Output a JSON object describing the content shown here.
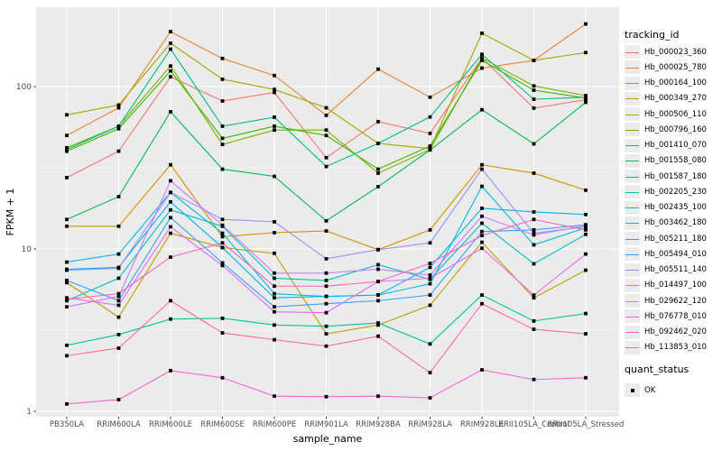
{
  "chart_data": {
    "type": "line",
    "title": "",
    "xlabel": "sample_name",
    "ylabel": "FPKM + 1",
    "y_scale": "log10",
    "ylim": [
      1,
      316
    ],
    "y_ticks": [
      1,
      10,
      100
    ],
    "y_minor_ticks": [
      3.162,
      31.62,
      316.2
    ],
    "grid": "on",
    "legend_position": "right",
    "panel_background": "#ebebeb",
    "gridline_color": "#ffffff",
    "tick_label_color": "#4d4d4d",
    "point_marker": "black-square",
    "categories": [
      "PB350LA",
      "RRIM600LA",
      "RRIM600LE",
      "RRIM600SE",
      "RRIM600PE",
      "RRIM901LA",
      "RRIM928BA",
      "RRIM928LA",
      "RRIM928LE",
      "RRII105LA_Control",
      "RRII105LA_Stressed"
    ],
    "legend_title": "tracking_id",
    "quant_legend_title": "quant_status",
    "quant_legend_value": "OK",
    "series": [
      {
        "name": "Hb_000023_360",
        "color": "#F8766D",
        "values": [
          27.5,
          40,
          115,
          81.5,
          92,
          36.5,
          60.8,
          51.5,
          150,
          73.7,
          83
        ]
      },
      {
        "name": "Hb_000025_780",
        "color": "#EA8331",
        "values": [
          50,
          74,
          218,
          149,
          117,
          66.5,
          128,
          86,
          130,
          145,
          243
        ]
      },
      {
        "name": "Hb_000164_100",
        "color": "#D89000",
        "values": [
          13.8,
          13.8,
          33,
          11.9,
          12.6,
          12.9,
          9.9,
          13.1,
          33,
          29.3,
          23
        ]
      },
      {
        "name": "Hb_000349_270",
        "color": "#C09B00",
        "values": [
          6.2,
          3.8,
          12.5,
          10.2,
          9.4,
          3.0,
          3.4,
          4.5,
          11.0,
          5.0,
          7.4
        ]
      },
      {
        "name": "Hb_000506_110",
        "color": "#A3A500",
        "values": [
          67,
          77,
          185,
          111,
          96,
          74,
          44.7,
          41.5,
          213,
          145,
          162
        ]
      },
      {
        "name": "Hb_000796_160",
        "color": "#7CAE00",
        "values": [
          42,
          57,
          134,
          44,
          54,
          54,
          29.3,
          41,
          150,
          101,
          88
        ]
      },
      {
        "name": "Hb_001410_070",
        "color": "#39B600",
        "values": [
          40,
          55,
          125,
          48,
          57,
          50,
          31,
          43,
          145,
          95,
          85
        ]
      },
      {
        "name": "Hb_001558_080",
        "color": "#00BB4E",
        "values": [
          15.2,
          21,
          70,
          31,
          28,
          14.9,
          24.2,
          40.7,
          72,
          44.4,
          80
        ]
      },
      {
        "name": "Hb_001587_180",
        "color": "#00BF7D",
        "values": [
          41,
          57,
          170,
          57,
          64.8,
          32.2,
          44.7,
          65,
          158,
          83.6,
          86
        ]
      },
      {
        "name": "Hb_002205_230",
        "color": "#00C1A3",
        "values": [
          2.55,
          2.97,
          3.7,
          3.74,
          3.4,
          3.34,
          3.5,
          2.6,
          5.2,
          3.6,
          4.0
        ]
      },
      {
        "name": "Hb_002435_100",
        "color": "#00BFC4",
        "values": [
          4.8,
          6.6,
          17.4,
          13.8,
          6.6,
          6.4,
          8.0,
          6.5,
          14.4,
          8.1,
          12.3
        ]
      },
      {
        "name": "Hb_003462_180",
        "color": "#00BAE0",
        "values": [
          8.3,
          9.3,
          22.3,
          12.5,
          5.3,
          5.1,
          5.2,
          6.1,
          24.3,
          10.6,
          13.5
        ]
      },
      {
        "name": "Hb_005211_180",
        "color": "#00B0F6",
        "values": [
          7.5,
          7.7,
          19.5,
          10.2,
          5.0,
          5.1,
          5.2,
          7.7,
          17.8,
          16.9,
          16.3
        ]
      },
      {
        "name": "Hb_005494_010",
        "color": "#35A2FF",
        "values": [
          6.4,
          4.8,
          15.6,
          8.2,
          4.4,
          4.6,
          4.8,
          5.2,
          12.8,
          13.1,
          14.1
        ]
      },
      {
        "name": "Hb_005511_140",
        "color": "#9590FF",
        "values": [
          7.4,
          7.6,
          22.3,
          15.2,
          14.7,
          8.7,
          9.9,
          10.9,
          31,
          12.5,
          13.7
        ]
      },
      {
        "name": "Hb_014497_100",
        "color": "#C77CFF",
        "values": [
          4.4,
          5.1,
          26.3,
          14.0,
          7.1,
          7.1,
          7.5,
          6.9,
          15.9,
          12.2,
          13.9
        ]
      },
      {
        "name": "Hb_029622_120",
        "color": "#E76BF3",
        "values": [
          5.0,
          4.5,
          13.7,
          7.9,
          4.1,
          4.05,
          6.3,
          6.6,
          10.1,
          5.2,
          9.3
        ]
      },
      {
        "name": "Hb_076778_010",
        "color": "#FA62DB",
        "values": [
          1.11,
          1.18,
          1.78,
          1.61,
          1.24,
          1.23,
          1.24,
          1.21,
          1.8,
          1.57,
          1.61
        ]
      },
      {
        "name": "Hb_092462_020",
        "color": "#FF62BC",
        "values": [
          4.9,
          5.3,
          8.9,
          10.9,
          5.9,
          5.9,
          6.3,
          8.15,
          12.1,
          15.2,
          13.1
        ]
      },
      {
        "name": "Hb_113853_010",
        "color": "#FF6A98",
        "values": [
          2.2,
          2.45,
          4.8,
          3.04,
          2.76,
          2.52,
          2.9,
          1.73,
          4.6,
          3.2,
          3.0
        ]
      }
    ]
  }
}
